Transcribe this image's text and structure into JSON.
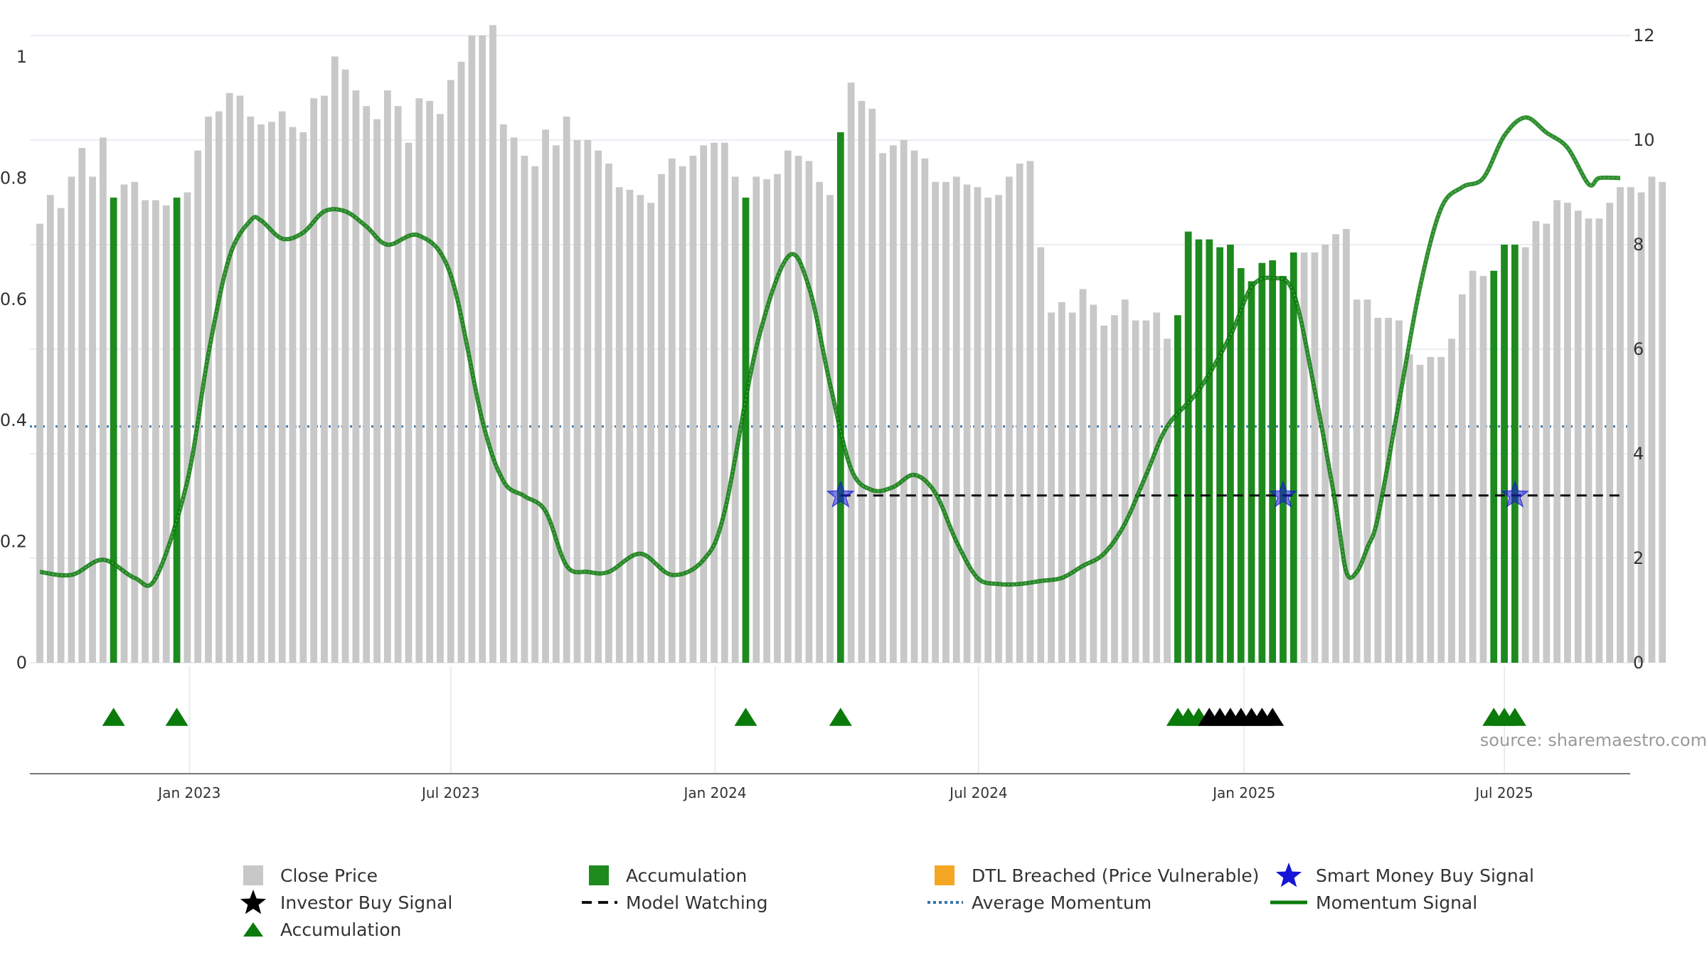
{
  "chart_data": {
    "type": "bar",
    "source": "source: sharemaestro.com",
    "y_left": {
      "range": [
        0,
        1
      ],
      "ticks": [
        0,
        0.2,
        0.4,
        0.6,
        0.8,
        1
      ],
      "tick_labels": [
        "0",
        "0.2",
        "0.4",
        "0.6",
        "0.8",
        "1"
      ]
    },
    "y_right": {
      "range": [
        0,
        12
      ],
      "ticks": [
        0,
        2,
        4,
        6,
        8,
        10,
        12
      ],
      "tick_labels": [
        "0",
        "2",
        "4",
        "6",
        "8",
        "10",
        "12"
      ]
    },
    "x_axis": {
      "start_week": 0,
      "end_week": 150,
      "ticks": [
        {
          "label": "Jan 2023",
          "week": 14.2
        },
        {
          "label": "Jul 2023",
          "week": 39.0
        },
        {
          "label": "Jan 2024",
          "week": 64.1
        },
        {
          "label": "Jul 2024",
          "week": 89.1
        },
        {
          "label": "Jan 2025",
          "week": 114.3
        },
        {
          "label": "Jul 2025",
          "week": 139.0
        }
      ]
    },
    "close_price_weekly": [
      8.4,
      8.95,
      8.7,
      9.3,
      9.85,
      9.3,
      10.05,
      8.9,
      9.15,
      9.2,
      8.85,
      8.85,
      8.75,
      8.9,
      9.0,
      9.8,
      10.45,
      10.55,
      10.9,
      10.85,
      10.45,
      10.3,
      10.35,
      10.55,
      10.25,
      10.15,
      10.8,
      10.85,
      11.6,
      11.35,
      10.95,
      10.65,
      10.4,
      10.95,
      10.65,
      9.95,
      10.8,
      10.75,
      10.5,
      11.15,
      11.5,
      12.0,
      12.0,
      12.2,
      10.3,
      10.05,
      9.7,
      9.5,
      10.2,
      9.9,
      10.45,
      10.0,
      10.0,
      9.8,
      9.55,
      9.1,
      9.05,
      8.95,
      8.8,
      9.35,
      9.65,
      9.5,
      9.7,
      9.9,
      9.95,
      9.95,
      9.3,
      8.9,
      9.3,
      9.25,
      9.35,
      9.8,
      9.7,
      9.6,
      9.2,
      8.95,
      10.15,
      11.1,
      10.75,
      10.6,
      9.75,
      9.9,
      10.0,
      9.8,
      9.65,
      9.2,
      9.2,
      9.3,
      9.15,
      9.1,
      8.9,
      8.95,
      9.3,
      9.55,
      9.6,
      7.95,
      6.7,
      6.9,
      6.7,
      7.15,
      6.85,
      6.45,
      6.65,
      6.95,
      6.55,
      6.55,
      6.7,
      6.2,
      6.65,
      8.25,
      8.1,
      8.1,
      7.95,
      8.0,
      7.55,
      7.3,
      7.65,
      7.7,
      7.4,
      7.85,
      7.85,
      7.85,
      8.0,
      8.2,
      8.3,
      6.95,
      6.95,
      6.6,
      6.6,
      6.55,
      5.9,
      5.7,
      5.85,
      5.85,
      6.2,
      7.05,
      7.5,
      7.4,
      7.5,
      8.0,
      8.0,
      7.95,
      8.45,
      8.4,
      8.85,
      8.8,
      8.65,
      8.5,
      8.5,
      8.8,
      9.1,
      9.1,
      9.0,
      9.3,
      9.2
    ],
    "accumulation_weeks": [
      7,
      13,
      67,
      76,
      108,
      109,
      110,
      111,
      112,
      113,
      114,
      115,
      116,
      117,
      118,
      119,
      138,
      139,
      140
    ],
    "accumulation_marker_weeks": [
      7,
      13,
      67,
      76,
      108,
      109,
      110,
      138,
      139,
      140
    ],
    "investor_buy_weeks": [
      111,
      112,
      113,
      114,
      115,
      116,
      117
    ],
    "smart_money_buy_weeks": [
      76,
      118,
      140
    ],
    "model_watching": {
      "start_week": 76,
      "end_week": 150,
      "value": 3.2
    },
    "average_momentum": 0.39,
    "momentum_signal": {
      "weeks": [
        0,
        3,
        6,
        9,
        11,
        14,
        16,
        18,
        20,
        21,
        23,
        25,
        27,
        29,
        31,
        33,
        36,
        39,
        42,
        44,
        46,
        48,
        50,
        52,
        54,
        57,
        60,
        63,
        65,
        68,
        71,
        73,
        75,
        77,
        79,
        81,
        83,
        85,
        87,
        89,
        91,
        93,
        95,
        97,
        99,
        101,
        103,
        105,
        107,
        110,
        113,
        115,
        117,
        119,
        121,
        123,
        124,
        125,
        126,
        127,
        129,
        131,
        133,
        135,
        137,
        139,
        141,
        143,
        145,
        147,
        148,
        150
      ],
      "values": [
        0.15,
        0.145,
        0.17,
        0.14,
        0.14,
        0.3,
        0.51,
        0.67,
        0.73,
        0.73,
        0.7,
        0.71,
        0.745,
        0.745,
        0.72,
        0.69,
        0.705,
        0.64,
        0.4,
        0.3,
        0.275,
        0.25,
        0.16,
        0.15,
        0.15,
        0.18,
        0.145,
        0.17,
        0.25,
        0.52,
        0.67,
        0.62,
        0.46,
        0.32,
        0.285,
        0.29,
        0.31,
        0.28,
        0.2,
        0.14,
        0.13,
        0.13,
        0.135,
        0.14,
        0.16,
        0.18,
        0.23,
        0.31,
        0.39,
        0.45,
        0.54,
        0.62,
        0.635,
        0.61,
        0.45,
        0.26,
        0.15,
        0.15,
        0.19,
        0.24,
        0.43,
        0.62,
        0.75,
        0.785,
        0.8,
        0.87,
        0.9,
        0.875,
        0.85,
        0.79,
        0.8,
        0.8
      ]
    },
    "legend": [
      {
        "label": "Close Price",
        "key": "close"
      },
      {
        "label": "Accumulation",
        "key": "accum"
      },
      {
        "label": "DTL Breached (Price Vulnerable)",
        "key": "dtl"
      },
      {
        "label": "Smart Money Buy Signal",
        "key": "smart"
      },
      {
        "label": "Investor Buy Signal",
        "key": "investor"
      },
      {
        "label": "Model Watching",
        "key": "watch"
      },
      {
        "label": "Average Momentum",
        "key": "avg"
      },
      {
        "label": "Momentum Signal",
        "key": "momentum"
      },
      {
        "label": "Accumulation",
        "key": "accum_marker"
      }
    ],
    "colors": {
      "close": "#c8c8c8",
      "accum": "#1e8a1e",
      "accum_marker": "#0a7a0a",
      "dtl": "#f5a623",
      "smart": "#1515d5",
      "investor": "#000000",
      "watch": "#111111",
      "avg": "#3a74a8",
      "momentum": "#0a7a0a",
      "grid": "#e8edf2",
      "axis": "#777777",
      "text": "#333333",
      "source": "#9a9a9a"
    }
  }
}
